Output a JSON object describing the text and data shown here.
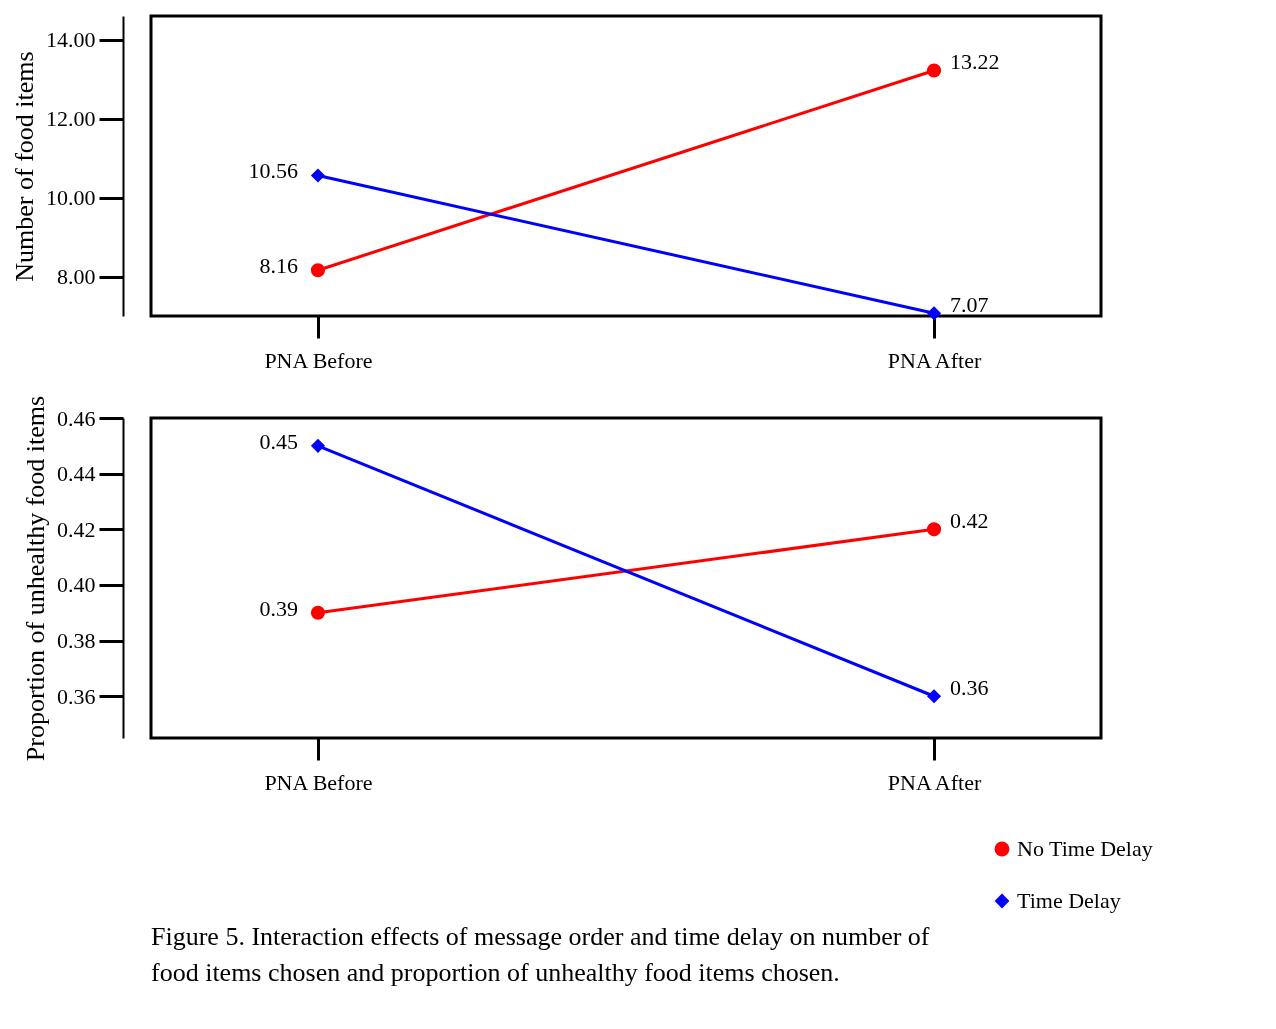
{
  "chart_data": [
    {
      "type": "line",
      "ylabel": "Number of food items",
      "categories": [
        "PNA Before",
        "PNA After"
      ],
      "ylim": [
        7.0,
        14.6
      ],
      "yticks": [
        {
          "value": 8,
          "label": "8.00"
        },
        {
          "value": 10,
          "label": "10.00"
        },
        {
          "value": 12,
          "label": "12.00"
        },
        {
          "value": 14,
          "label": "14.00"
        }
      ],
      "grid": false,
      "data_labels": true,
      "legend": false,
      "series": [
        {
          "color": "#ff0000",
          "marker": "circle",
          "values": [
            8.16,
            13.22
          ]
        },
        {
          "color": "#0000ff",
          "marker": "diamond",
          "values": [
            10.56,
            7.07
          ]
        }
      ]
    },
    {
      "type": "line",
      "ylabel": "Proportion of unhealthy food items",
      "categories": [
        "PNA Before",
        "PNA After"
      ],
      "ylim": [
        0.345,
        0.46
      ],
      "yticks": [
        {
          "value": 0.36,
          "label": "0.36"
        },
        {
          "value": 0.38,
          "label": "0.38"
        },
        {
          "value": 0.4,
          "label": "0.40"
        },
        {
          "value": 0.42,
          "label": "0.42"
        },
        {
          "value": 0.44,
          "label": "0.44"
        },
        {
          "value": 0.46,
          "label": "0.46"
        }
      ],
      "grid": false,
      "data_labels": true,
      "legend": "bottom right",
      "annotations": [
        "Figure 5. Interaction effects of message order and time delay on number of food items chosen and proportion of unhealthy food items chosen."
      ],
      "series": [
        {
          "name": "No Time Delay",
          "color": "#ff0000",
          "marker": "circle",
          "values": [
            0.39,
            0.42
          ]
        },
        {
          "name": "Time Delay",
          "color": "#0000ff",
          "marker": "diamond",
          "values": [
            0.45,
            0.36
          ]
        }
      ]
    }
  ]
}
